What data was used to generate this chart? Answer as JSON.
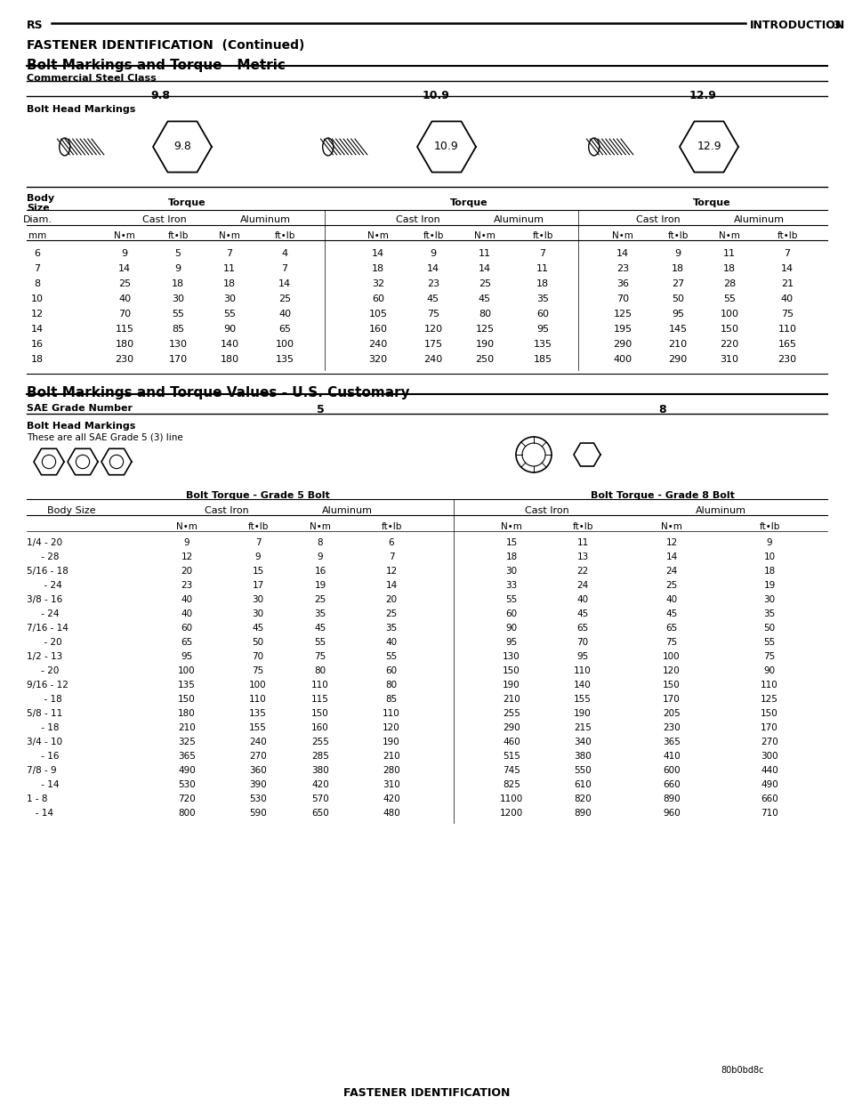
{
  "header_left": "RS",
  "header_right": "INTRODUCTION",
  "header_page": "3",
  "section_title": "FASTENER IDENTIFICATION  (Continued)",
  "metric_title": "Bolt Markings and Torque - Metric",
  "metric_subtitle": "Commercial Steel Class",
  "metric_classes": [
    "9.8",
    "10.9",
    "12.9"
  ],
  "metric_sub_headers": [
    "mm",
    "N•m",
    "ft•lb",
    "N•m",
    "ft•lb",
    "N•m",
    "ft•lb",
    "N•m",
    "ft•lb",
    "N•m",
    "ft•lb",
    "N•m",
    "ft•lb"
  ],
  "metric_data": [
    [
      6,
      9,
      5,
      7,
      4,
      14,
      9,
      11,
      7,
      14,
      9,
      11,
      7
    ],
    [
      7,
      14,
      9,
      11,
      7,
      18,
      14,
      14,
      11,
      23,
      18,
      18,
      14
    ],
    [
      8,
      25,
      18,
      18,
      14,
      32,
      23,
      25,
      18,
      36,
      27,
      28,
      21
    ],
    [
      10,
      40,
      30,
      30,
      25,
      60,
      45,
      45,
      35,
      70,
      50,
      55,
      40
    ],
    [
      12,
      70,
      55,
      55,
      40,
      105,
      75,
      80,
      60,
      125,
      95,
      100,
      75
    ],
    [
      14,
      115,
      85,
      90,
      65,
      160,
      120,
      125,
      95,
      195,
      145,
      150,
      110
    ],
    [
      16,
      180,
      130,
      140,
      100,
      240,
      175,
      190,
      135,
      290,
      210,
      220,
      165
    ],
    [
      18,
      230,
      170,
      180,
      135,
      320,
      240,
      250,
      185,
      400,
      290,
      310,
      230
    ]
  ],
  "customary_title": "Bolt Markings and Torque Values - U.S. Customary",
  "sae_label": "SAE Grade Number",
  "sae_grades": [
    "5",
    "8"
  ],
  "customary_data": [
    [
      "1/4 - 20",
      9,
      7,
      8,
      6,
      15,
      11,
      12,
      9
    ],
    [
      "     - 28",
      12,
      9,
      9,
      7,
      18,
      13,
      14,
      10
    ],
    [
      "5/16 - 18",
      20,
      15,
      16,
      12,
      30,
      22,
      24,
      18
    ],
    [
      "      - 24",
      23,
      17,
      19,
      14,
      33,
      24,
      25,
      19
    ],
    [
      "3/8 - 16",
      40,
      30,
      25,
      20,
      55,
      40,
      40,
      30
    ],
    [
      "     - 24",
      40,
      30,
      35,
      25,
      60,
      45,
      45,
      35
    ],
    [
      "7/16 - 14",
      60,
      45,
      45,
      35,
      90,
      65,
      65,
      50
    ],
    [
      "      - 20",
      65,
      50,
      55,
      40,
      95,
      70,
      75,
      55
    ],
    [
      "1/2 - 13",
      95,
      70,
      75,
      55,
      130,
      95,
      100,
      75
    ],
    [
      "     - 20",
      100,
      75,
      80,
      60,
      150,
      110,
      120,
      90
    ],
    [
      "9/16 - 12",
      135,
      100,
      110,
      80,
      190,
      140,
      150,
      110
    ],
    [
      "      - 18",
      150,
      110,
      115,
      85,
      210,
      155,
      170,
      125
    ],
    [
      "5/8 - 11",
      180,
      135,
      150,
      110,
      255,
      190,
      205,
      150
    ],
    [
      "     - 18",
      210,
      155,
      160,
      120,
      290,
      215,
      230,
      170
    ],
    [
      "3/4 - 10",
      325,
      240,
      255,
      190,
      460,
      340,
      365,
      270
    ],
    [
      "     - 16",
      365,
      270,
      285,
      210,
      515,
      380,
      410,
      300
    ],
    [
      "7/8 - 9",
      490,
      360,
      380,
      280,
      745,
      550,
      600,
      440
    ],
    [
      "     - 14",
      530,
      390,
      420,
      310,
      825,
      610,
      660,
      490
    ],
    [
      "1 - 8",
      720,
      530,
      570,
      420,
      1100,
      820,
      890,
      660
    ],
    [
      "   - 14",
      800,
      590,
      650,
      480,
      1200,
      890,
      960,
      710
    ]
  ],
  "footer_note": "80b0bd8c",
  "footer_title": "FASTENER IDENTIFICATION",
  "bg_color": "#ffffff"
}
